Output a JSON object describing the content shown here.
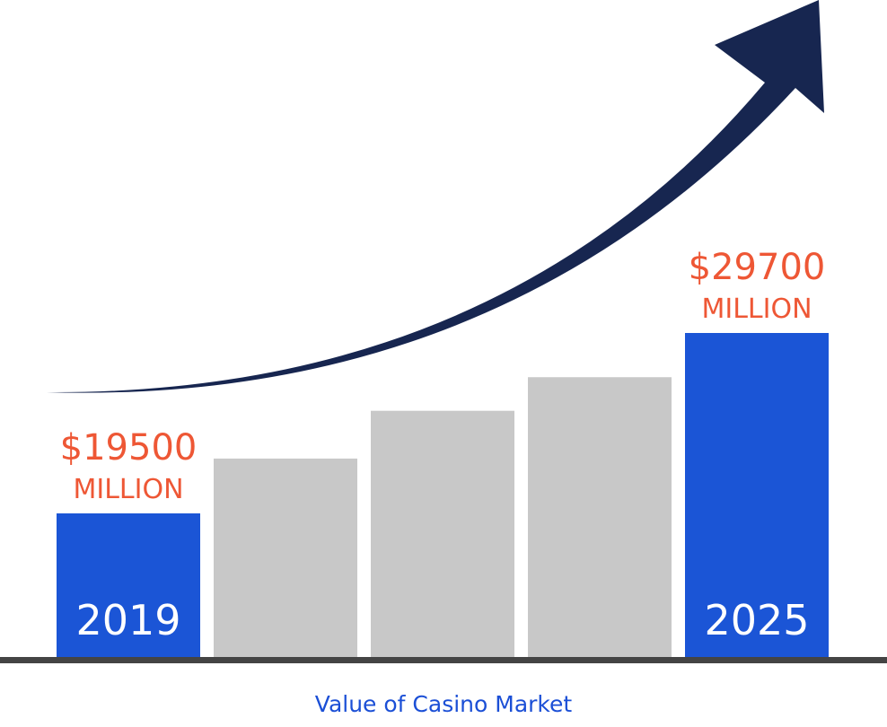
{
  "chart_data": {
    "type": "bar",
    "caption": "Value of Casino Market",
    "bars": [
      {
        "year": "2019",
        "value": 19500,
        "value_label": "$19500",
        "unit_label": "MILLION",
        "highlight": true
      },
      {
        "year": "",
        "value": 22600,
        "highlight": false
      },
      {
        "year": "",
        "value": 25300,
        "highlight": false
      },
      {
        "year": "",
        "value": 27200,
        "highlight": false
      },
      {
        "year": "2025",
        "value": 29700,
        "value_label": "$29700",
        "unit_label": "MILLION",
        "highlight": true
      }
    ],
    "unit": "million USD",
    "ylim": [
      0,
      36000
    ],
    "trend_arrow": true,
    "colors": {
      "highlight_bar": "#1b55d6",
      "other_bar": "#c8c8c8",
      "value_label": "#ee5735",
      "year_label": "#ffffff",
      "arrow": "#172650",
      "baseline": "#444444",
      "caption": "#1b4fd6"
    }
  }
}
